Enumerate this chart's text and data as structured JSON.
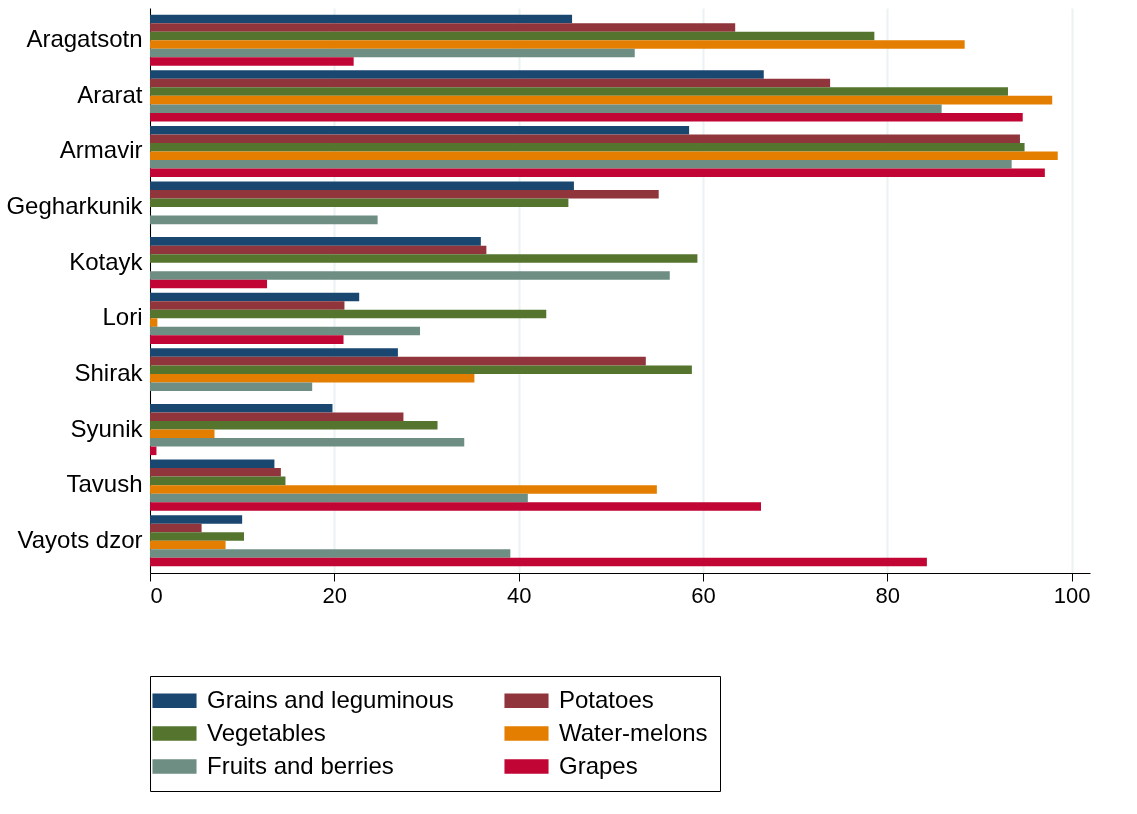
{
  "chart_data": {
    "type": "bar",
    "orientation": "horizontal",
    "categories": [
      "Aragatsotn",
      "Ararat",
      "Armavir",
      "Gegharkunik",
      "Kotayk",
      "Lori",
      "Shirak",
      "Syunik",
      "Tavush",
      "Vayots dzor"
    ],
    "series": [
      {
        "name": "Grains and leguminous",
        "color": "#1a476f",
        "values": [
          45.8,
          66.6,
          58.5,
          46.0,
          35.9,
          22.7,
          26.9,
          19.8,
          13.5,
          10.0
        ]
      },
      {
        "name": "Potatoes",
        "color": "#90353b",
        "values": [
          63.5,
          73.8,
          94.4,
          55.2,
          36.5,
          21.1,
          53.8,
          27.5,
          14.2,
          5.6
        ]
      },
      {
        "name": "Vegetables",
        "color": "#55752f",
        "values": [
          78.6,
          93.1,
          94.9,
          45.4,
          59.4,
          43.0,
          58.8,
          31.2,
          14.7,
          10.2
        ]
      },
      {
        "name": "Water-melons",
        "color": "#e37e00",
        "values": [
          88.4,
          97.9,
          98.5,
          null,
          null,
          0.8,
          35.2,
          7.0,
          55.0,
          8.2
        ]
      },
      {
        "name": "Fruits and berries",
        "color": "#6e8e84",
        "values": [
          52.6,
          85.9,
          93.5,
          24.7,
          56.4,
          29.3,
          17.6,
          34.1,
          41.0,
          39.1
        ]
      },
      {
        "name": "Grapes",
        "color": "#c10534",
        "values": [
          22.1,
          94.7,
          97.1,
          null,
          12.7,
          21.0,
          null,
          0.7,
          66.3,
          84.3
        ]
      }
    ],
    "xlim": [
      0,
      102
    ],
    "xticks": [
      0,
      20,
      40,
      60,
      80,
      100
    ],
    "grid": "x",
    "legend": "bottom"
  }
}
